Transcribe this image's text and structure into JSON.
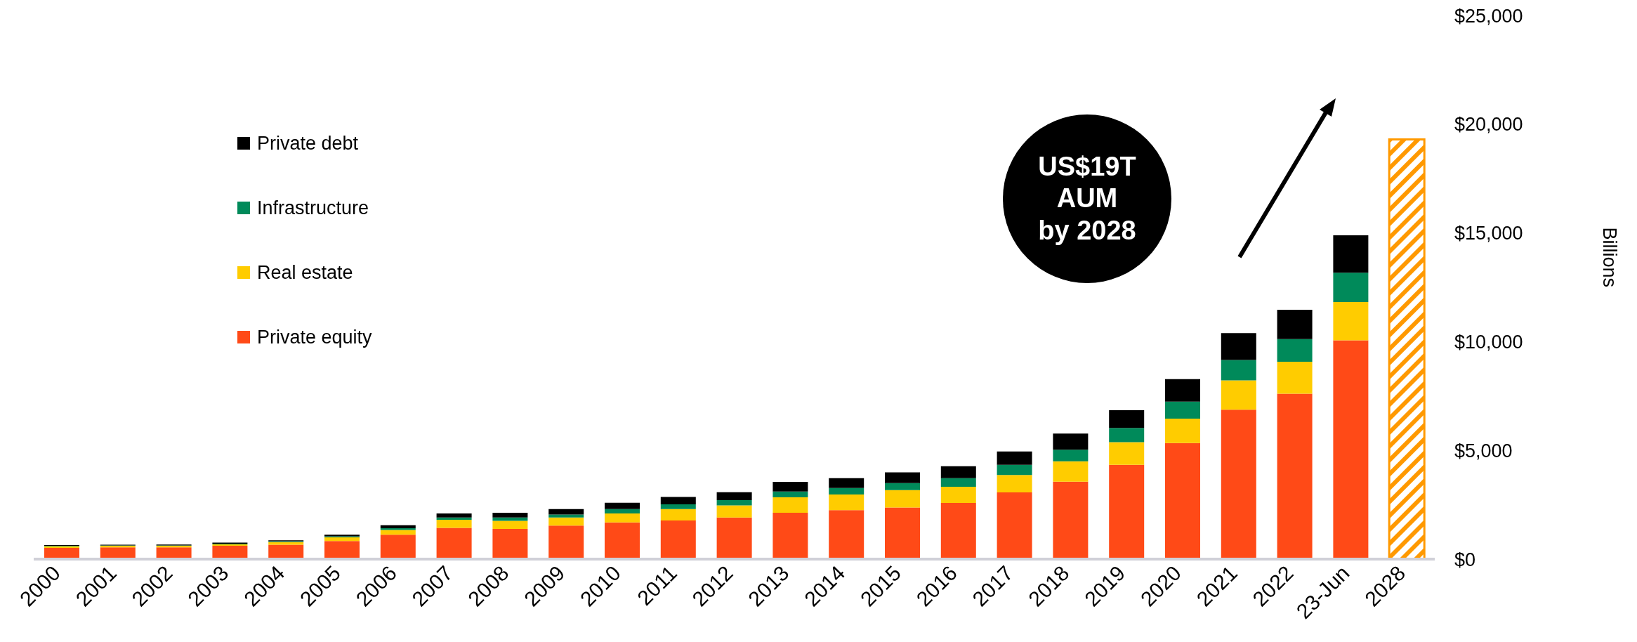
{
  "chart_data": {
    "type": "bar",
    "stacked": true,
    "ylabel": "Billions",
    "categories": [
      "2000",
      "2001",
      "2002",
      "2003",
      "2004",
      "2005",
      "2006",
      "2007",
      "2008",
      "2009",
      "2010",
      "2011",
      "2012",
      "2013",
      "2014",
      "2015",
      "2016",
      "2017",
      "2018",
      "2019",
      "2020",
      "2021",
      "2022",
      "23-Jun",
      "2028"
    ],
    "series": [
      {
        "name": "Private equity",
        "color": "#ff4a17",
        "values": [
          520,
          540,
          540,
          610,
          660,
          830,
          1120,
          1440,
          1390,
          1540,
          1690,
          1780,
          1910,
          2130,
          2250,
          2370,
          2580,
          3070,
          3560,
          4340,
          5340,
          6870,
          7610,
          10060,
          null
        ]
      },
      {
        "name": "Real estate",
        "color": "#ffcc00",
        "values": [
          70,
          70,
          70,
          70,
          120,
          170,
          220,
          370,
          370,
          370,
          410,
          520,
          560,
          710,
          720,
          800,
          750,
          800,
          940,
          1040,
          1120,
          1350,
          1470,
          1760,
          null
        ]
      },
      {
        "name": "Infrastructure",
        "color": "#008a5a",
        "values": [
          20,
          20,
          20,
          30,
          40,
          50,
          80,
          100,
          150,
          140,
          200,
          220,
          240,
          270,
          300,
          330,
          390,
          470,
          530,
          650,
          780,
          940,
          1040,
          1350,
          null
        ]
      },
      {
        "name": "Private debt",
        "color": "#000000",
        "values": [
          40,
          30,
          40,
          50,
          40,
          70,
          140,
          190,
          220,
          250,
          290,
          340,
          370,
          440,
          450,
          490,
          550,
          610,
          740,
          820,
          1040,
          1230,
          1350,
          1720,
          null
        ]
      },
      {
        "color": "#ff9900",
        "values": [
          null,
          null,
          null,
          null,
          null,
          null,
          null,
          null,
          null,
          null,
          null,
          null,
          null,
          null,
          null,
          null,
          null,
          null,
          null,
          null,
          null,
          null,
          null,
          null,
          19300
        ]
      }
    ],
    "ylim": [
      0,
      25000
    ],
    "yticks": [
      {
        "value": 0,
        "label": "$0"
      },
      {
        "value": 5000,
        "label": "$5,000"
      },
      {
        "value": 10000,
        "label": "$10,000"
      },
      {
        "value": 15000,
        "label": "$15,000"
      },
      {
        "value": 20000,
        "label": "$20,000"
      },
      {
        "value": 25000,
        "label": "$25,000"
      }
    ],
    "legend": "top left",
    "annotations": [
      "US$19T\nAUM\nby 2028"
    ]
  }
}
